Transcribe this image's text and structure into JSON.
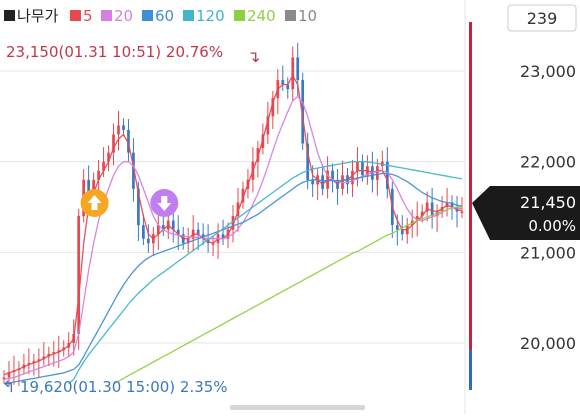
{
  "legend": {
    "items": [
      {
        "label": "나무가",
        "color": "#222222"
      },
      {
        "label": "5",
        "color": "#e8474f"
      },
      {
        "label": "20",
        "color": "#d77ee0"
      },
      {
        "label": "60",
        "color": "#3f8fd8"
      },
      {
        "label": "120",
        "color": "#41b5c9"
      },
      {
        "label": "240",
        "color": "#8fd043"
      },
      {
        "label": "10",
        "color": "#8a8a8a"
      }
    ]
  },
  "counter_badge": "239",
  "annotations": {
    "high": "23,150(01.31 10:51) 20.76%",
    "low": "19,620(01.30 15:00) 2.35%",
    "high_arrow": "↴",
    "low_arrow": "↰"
  },
  "current_price": {
    "price": "21,450",
    "change": "0.00%"
  },
  "colors": {
    "up": "#e8474f",
    "down": "#3a78c4",
    "ma5": "#e8474f",
    "ma20": "#d77ee0",
    "ma60": "#3f8fd8",
    "ma120": "#41b5c9",
    "ma240": "#8fd043",
    "high_text": "#c2384b",
    "low_text": "#3a78c4",
    "buy_marker": "#f5a623",
    "sell_marker": "#c17ef0",
    "volume_bar_red": "#c3243f",
    "volume_bar_blue": "#2f6bbf",
    "current_box": "#1a1a1a"
  },
  "markers": [
    {
      "type": "buy",
      "icon": "up-arrow-icon",
      "x_index": 19
    },
    {
      "type": "sell",
      "icon": "down-arrow-icon",
      "x_index": 33
    }
  ],
  "chart_data": {
    "type": "line",
    "title": "",
    "xlabel": "",
    "ylabel": "",
    "ylim": [
      19550,
      23500
    ],
    "yticks": [
      20000,
      21000,
      22000,
      23000
    ],
    "ytick_labels": [
      "20,000",
      "21,000",
      "22,000",
      "23,000"
    ],
    "series": [
      {
        "name": "나무가",
        "values": [
          19620,
          19680,
          19700,
          19720,
          19760,
          19780,
          19800,
          19820,
          19850,
          19880,
          19900,
          19920,
          19950,
          20000,
          20100,
          21400,
          21800,
          21600,
          21800,
          21900,
          22000,
          22100,
          22300,
          22400,
          22350,
          22100,
          21700,
          21300,
          21150,
          21100,
          21200,
          21300,
          21250,
          21350,
          21250,
          21200,
          21100,
          21150,
          21250,
          21200,
          21150,
          21100,
          21100,
          21200,
          21150,
          21250,
          21400,
          21550,
          21700,
          21800,
          22000,
          22150,
          22300,
          22500,
          22700,
          22900,
          22850,
          22800,
          23150,
          22900,
          22200,
          21800,
          21750,
          21850,
          21700,
          21900,
          21800,
          21700,
          21850,
          21750,
          21900,
          22000,
          21850,
          21950,
          21800,
          21950,
          22000,
          21700,
          21300,
          21250,
          21200,
          21300,
          21350,
          21400,
          21450,
          21550,
          21400,
          21450,
          21500,
          21550,
          21500,
          21450,
          21450
        ]
      },
      {
        "name": "5",
        "values": [
          19650,
          19670,
          19690,
          19710,
          19740,
          19760,
          19780,
          19800,
          19830,
          19860,
          19880,
          19900,
          19930,
          19970,
          20050,
          20500,
          21100,
          21500,
          21650,
          21800,
          21900,
          22000,
          22150,
          22250,
          22300,
          22200,
          21950,
          21650,
          21400,
          21200,
          21150,
          21200,
          21250,
          21300,
          21250,
          21200,
          21150,
          21150,
          21200,
          21200,
          21150,
          21120,
          21100,
          21150,
          21150,
          21200,
          21300,
          21450,
          21600,
          21750,
          21900,
          22050,
          22250,
          22450,
          22650,
          22800,
          22850,
          22850,
          22950,
          22850,
          22500,
          22100,
          21850,
          21800,
          21750,
          21800,
          21800,
          21750,
          21800,
          21800,
          21850,
          21900,
          21900,
          21900,
          21880,
          21900,
          21900,
          21800,
          21500,
          21350,
          21250,
          21250,
          21300,
          21350,
          21400,
          21480,
          21460,
          21450,
          21480,
          21520,
          21500,
          21470,
          21460
        ]
      },
      {
        "name": "20",
        "values": [
          19600,
          19610,
          19620,
          19640,
          19660,
          19680,
          19700,
          19720,
          19740,
          19760,
          19780,
          19800,
          19820,
          19850,
          19900,
          20100,
          20450,
          20800,
          21100,
          21350,
          21550,
          21700,
          21850,
          21950,
          22000,
          22000,
          21950,
          21850,
          21700,
          21550,
          21400,
          21300,
          21250,
          21220,
          21200,
          21190,
          21180,
          21170,
          21170,
          21160,
          21160,
          21150,
          21150,
          21150,
          21150,
          21170,
          21200,
          21260,
          21330,
          21420,
          21530,
          21650,
          21790,
          21950,
          22120,
          22280,
          22420,
          22550,
          22670,
          22720,
          22650,
          22500,
          22300,
          22100,
          21950,
          21850,
          21800,
          21780,
          21770,
          21770,
          21790,
          21810,
          21840,
          21860,
          21880,
          21890,
          21900,
          21880,
          21800,
          21700,
          21580,
          21480,
          21400,
          21360,
          21350,
          21370,
          21390,
          21410,
          21440,
          21470,
          21490,
          21490,
          21480
        ]
      },
      {
        "name": "60",
        "values": [
          19550,
          19560,
          19570,
          19580,
          19590,
          19600,
          19610,
          19620,
          19630,
          19640,
          19650,
          19660,
          19670,
          19690,
          19710,
          19760,
          19850,
          19950,
          20050,
          20150,
          20250,
          20350,
          20450,
          20550,
          20640,
          20720,
          20790,
          20850,
          20900,
          20940,
          20970,
          20990,
          21010,
          21030,
          21050,
          21070,
          21090,
          21110,
          21130,
          21150,
          21170,
          21190,
          21210,
          21230,
          21250,
          21270,
          21290,
          21310,
          21330,
          21360,
          21390,
          21420,
          21460,
          21500,
          21540,
          21580,
          21620,
          21660,
          21700,
          21740,
          21770,
          21790,
          21800,
          21800,
          21790,
          21790,
          21790,
          21790,
          21790,
          21800,
          21810,
          21820,
          21830,
          21840,
          21850,
          21860,
          21870,
          21870,
          21860,
          21840,
          21810,
          21780,
          21740,
          21700,
          21660,
          21630,
          21600,
          21580,
          21560,
          21550,
          21540,
          21520,
          21510
        ]
      },
      {
        "name": "120",
        "values": [
          null,
          null,
          null,
          null,
          null,
          null,
          null,
          null,
          null,
          null,
          null,
          null,
          null,
          19550,
          19600,
          19700,
          19790,
          19870,
          19940,
          20010,
          20080,
          20150,
          20220,
          20290,
          20360,
          20430,
          20490,
          20550,
          20600,
          20650,
          20700,
          20740,
          20780,
          20820,
          20860,
          20900,
          20940,
          20980,
          21020,
          21060,
          21100,
          21140,
          21180,
          21220,
          21260,
          21300,
          21340,
          21380,
          21420,
          21460,
          21500,
          21540,
          21580,
          21620,
          21660,
          21700,
          21740,
          21780,
          21820,
          21850,
          21880,
          21900,
          21920,
          21930,
          21940,
          21950,
          21960,
          21970,
          21980,
          21990,
          22000,
          22000,
          22000,
          22000,
          21990,
          21980,
          21970,
          21960,
          21950,
          21940,
          21930,
          21920,
          21910,
          21900,
          21890,
          21880,
          21870,
          21860,
          21850,
          21840,
          21830,
          21820,
          21810
        ]
      },
      {
        "name": "240",
        "values": [
          null,
          null,
          null,
          null,
          null,
          null,
          null,
          null,
          null,
          null,
          null,
          null,
          null,
          null,
          null,
          null,
          null,
          null,
          null,
          null,
          null,
          null,
          19550,
          19580,
          19610,
          19640,
          19670,
          19700,
          19730,
          19760,
          19790,
          19820,
          19850,
          19880,
          19910,
          19940,
          19970,
          20000,
          20030,
          20060,
          20090,
          20120,
          20150,
          20180,
          20210,
          20240,
          20270,
          20300,
          20330,
          20360,
          20390,
          20420,
          20450,
          20480,
          20510,
          20540,
          20570,
          20600,
          20630,
          20660,
          20690,
          20720,
          20750,
          20780,
          20810,
          20840,
          20870,
          20900,
          20930,
          20960,
          20990,
          21010,
          21040,
          21070,
          21100,
          21130,
          21160,
          21190,
          21210,
          21240,
          21270,
          21300,
          21320,
          21350,
          21370,
          21390,
          21410,
          21430,
          21450,
          21470,
          21490,
          21500,
          21500
        ]
      }
    ]
  }
}
